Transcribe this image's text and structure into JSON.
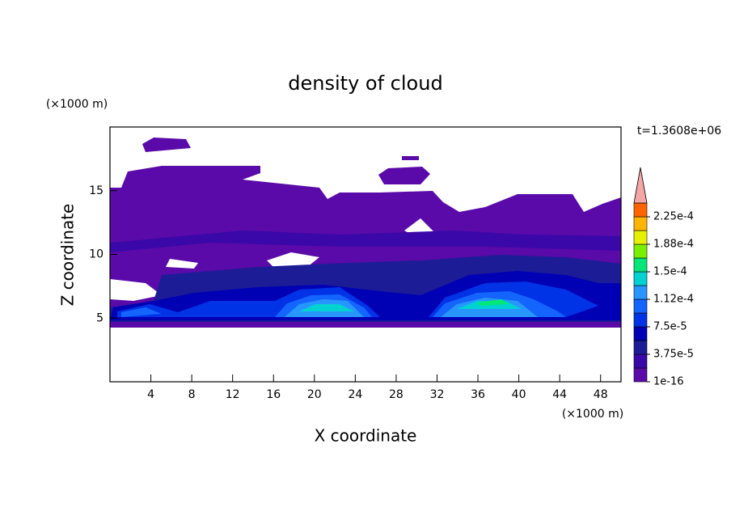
{
  "chart_data": {
    "type": "contour",
    "title": "density of cloud",
    "x_label": "X coordinate",
    "y_label": "Z coordinate",
    "x_unit": "(×1000 m)",
    "y_unit": "(×1000 m)",
    "time_label": "t=1.3608e+06",
    "xlim": [
      0,
      50
    ],
    "xticks": [
      4,
      8,
      12,
      16,
      20,
      24,
      28,
      32,
      36,
      40,
      44,
      48
    ],
    "ylim": [
      0,
      20
    ],
    "yticks": [
      5,
      10,
      15
    ],
    "clim": [
      1e-16,
      0.00024375
    ],
    "cticks": [
      {
        "value": 1e-16,
        "label": "1e-16"
      },
      {
        "value": 3.75e-05,
        "label": "3.75e-5"
      },
      {
        "value": 7.5e-05,
        "label": "7.5e-5"
      },
      {
        "value": 0.0001125,
        "label": "1.12e-4"
      },
      {
        "value": 0.00015,
        "label": "1.5e-4"
      },
      {
        "value": 0.0001875,
        "label": "1.88e-4"
      },
      {
        "value": 0.000225,
        "label": "2.25e-4"
      }
    ],
    "colors": [
      "#5a0aa8",
      "#3a08a8",
      "#1c1c96",
      "#0000b4",
      "#0032e6",
      "#1464ff",
      "#2896ff",
      "#00d2d2",
      "#00e678",
      "#78f000",
      "#e6f000",
      "#ffb400",
      "#ff6400"
    ],
    "extend_color": "#f4a6a6"
  }
}
